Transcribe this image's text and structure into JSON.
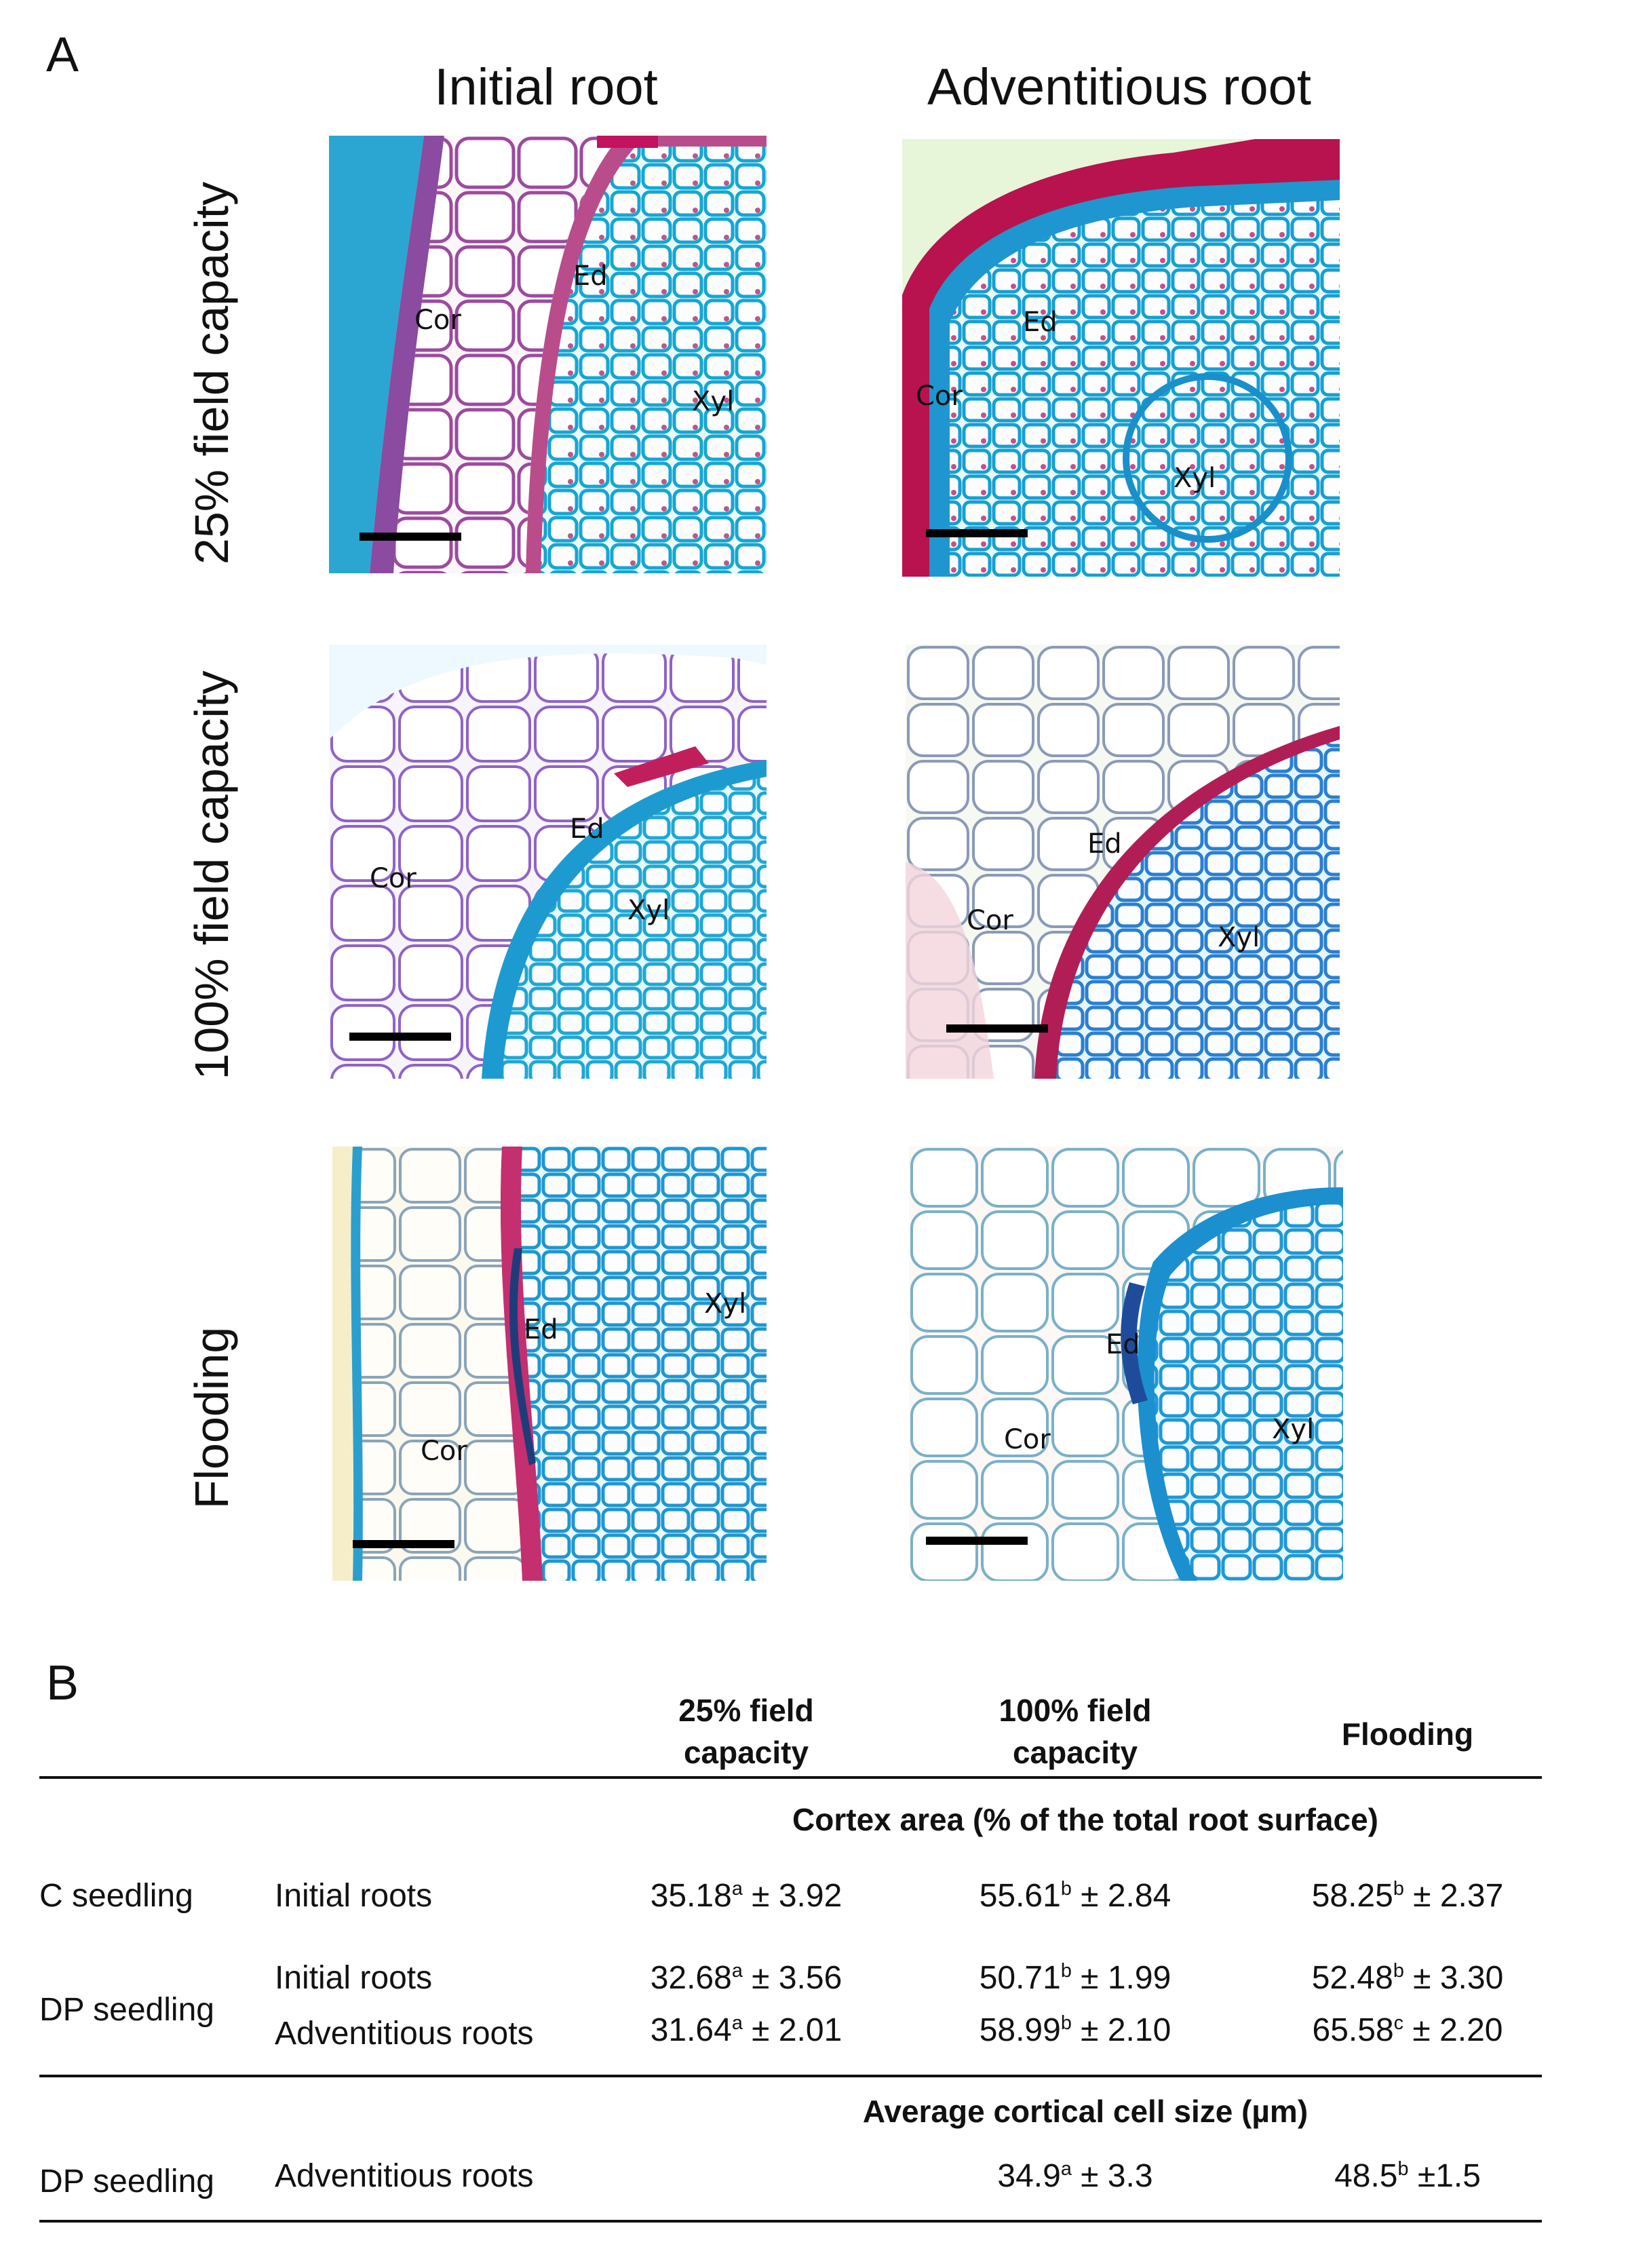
{
  "panel_a": {
    "letter": "A",
    "columns": [
      "Initial root",
      "Adventitious root"
    ],
    "rows": [
      "25% field capacity",
      "100% field capacity",
      "Flooding"
    ],
    "images": [
      {
        "labels": {
          "cor": "Cor",
          "ed": "Ed",
          "xyl": "Xyl"
        }
      },
      {
        "labels": {
          "cor": "Cor",
          "ed": "Ed",
          "xyl": "Xyl"
        }
      },
      {
        "labels": {
          "cor": "Cor",
          "ed": "Ed",
          "xyl": "Xyl"
        }
      },
      {
        "labels": {
          "cor": "Cor",
          "ed": "Ed",
          "xyl": "Xyl"
        }
      },
      {
        "labels": {
          "cor": "Cor",
          "ed": "Ed",
          "xyl": "Xyl"
        }
      },
      {
        "labels": {
          "cor": "Cor",
          "ed": "Ed",
          "xyl": "Xyl"
        }
      }
    ]
  },
  "panel_b": {
    "letter": "B",
    "headers": {
      "col1": [
        "25% field",
        "capacity"
      ],
      "col2": [
        "100% field",
        "capacity"
      ],
      "col3": "Flooding"
    },
    "section1": {
      "title": "Cortex area (% of the total root surface)",
      "rows": [
        {
          "group": "C seedling",
          "type": "Initial roots",
          "v1": {
            "mean": "35.18",
            "sup": "a",
            "sd": " ± 3.92"
          },
          "v2": {
            "mean": "55.61",
            "sup": "b",
            "sd": " ± 2.84"
          },
          "v3": {
            "mean": "58.25",
            "sup": "b",
            "sd": " ± 2.37"
          }
        },
        {
          "group": "DP seedling",
          "type": "Initial roots",
          "v1": {
            "mean": "32.68",
            "sup": "a",
            "sd": " ± 3.56"
          },
          "v2": {
            "mean": "50.71",
            "sup": "b",
            "sd": " ± 1.99"
          },
          "v3": {
            "mean": "52.48",
            "sup": "b",
            "sd": " ± 3.30"
          }
        },
        {
          "group": "",
          "type": "Adventitious roots",
          "v1": {
            "mean": "31.64",
            "sup": "a",
            "sd": " ± 2.01"
          },
          "v2": {
            "mean": "58.99",
            "sup": "b",
            "sd": " ± 2.10"
          },
          "v3": {
            "mean": "65.58",
            "sup": "c",
            "sd": " ± 2.20"
          }
        }
      ]
    },
    "section2": {
      "title": "Average cortical cell size (µm)",
      "rows": [
        {
          "group": "DP seedling",
          "type": "Adventitious roots",
          "v2": {
            "mean": "34.9",
            "sup": "a",
            "sd": " ± 3.3"
          },
          "v3": {
            "mean": "48.5",
            "sup": "b",
            "sd": " ±1.5"
          }
        }
      ]
    }
  }
}
